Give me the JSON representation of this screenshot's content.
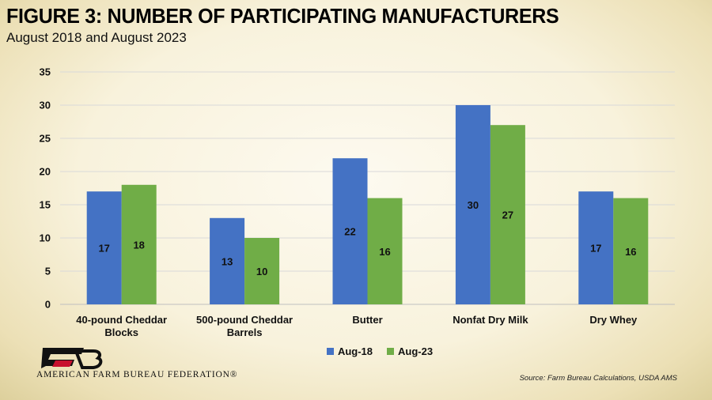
{
  "header": {
    "title": "FIGURE 3: NUMBER OF PARTICIPATING MANUFACTURERS",
    "subtitle": "August 2018 and August 2023"
  },
  "chart_data": {
    "type": "bar",
    "categories": [
      [
        "40-pound Cheddar",
        "Blocks"
      ],
      [
        "500-pound Cheddar",
        "Barrels"
      ],
      [
        "Butter"
      ],
      [
        "Nonfat Dry Milk"
      ],
      [
        "Dry Whey"
      ]
    ],
    "series": [
      {
        "name": "Aug-18",
        "color": "#4472c4",
        "values": [
          17,
          13,
          22,
          30,
          17
        ]
      },
      {
        "name": "Aug-23",
        "color": "#70ad47",
        "values": [
          18,
          10,
          16,
          27,
          16
        ]
      }
    ],
    "yticks": [
      0,
      5,
      10,
      15,
      20,
      25,
      30,
      35
    ],
    "ylim": [
      0,
      35
    ],
    "grid": true,
    "legend": "bottom-center",
    "xlabel": "",
    "ylabel": ""
  },
  "footer": {
    "logo_name": "AMERICAN FARM BUREAU FEDERATION®",
    "source": "Source: Farm Bureau Calculations, USDA AMS"
  }
}
